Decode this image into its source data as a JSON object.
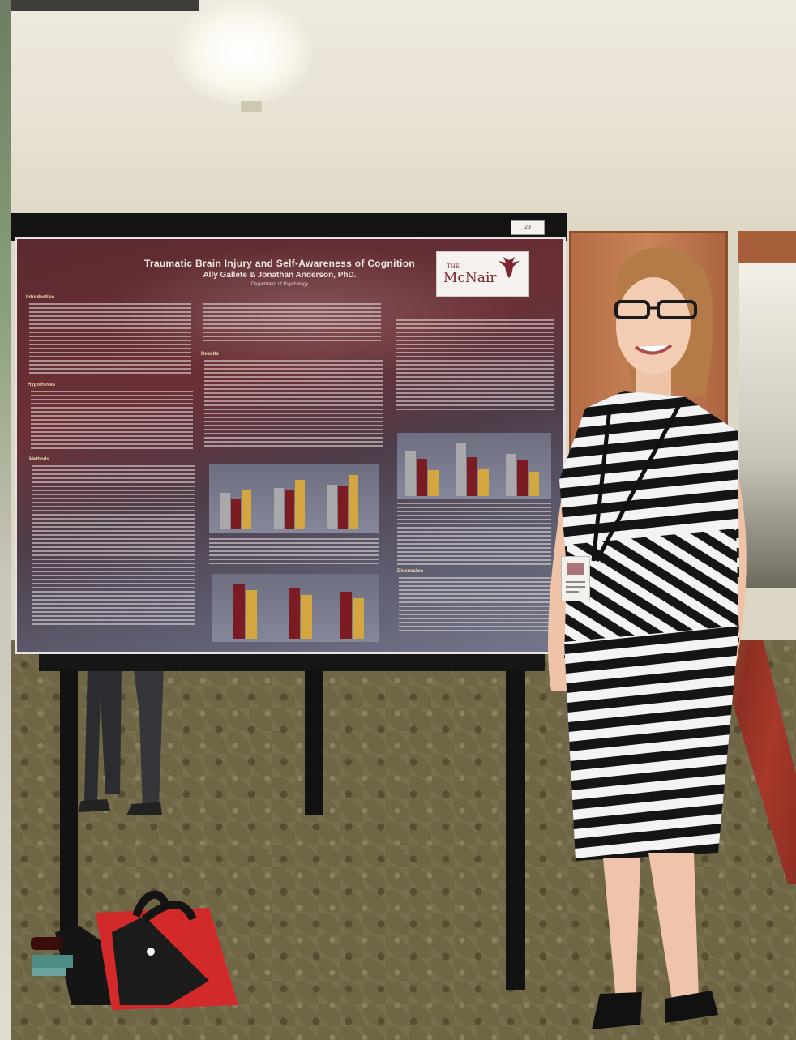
{
  "poster": {
    "title": "Traumatic Brain Injury and Self-Awareness of Cognition",
    "authors": "Ally Gallete & Jonathan Anderson, PhD.",
    "department": "Department of Psychology",
    "sections": {
      "introduction": "Introduction",
      "hypotheses": "Hypotheses",
      "methods": "Methods",
      "results": "Results",
      "discussion": "Discussion"
    }
  },
  "logo": {
    "text": "McNair",
    "prefix": "THE"
  },
  "easel": {
    "number_tag": "23"
  },
  "colors": {
    "poster_maroon": "#6b3036",
    "poster_gray": "#74778a",
    "bar_gray": "#a9a9ab",
    "bar_maroon": "#7a1c22",
    "bar_gold": "#d4a640",
    "carpet": "#6f6646",
    "dress_black": "#151515",
    "bag_red": "#d22a2a"
  },
  "chart_icons": [
    "bar-chart-icon",
    "bar-chart-icon",
    "bar-chart-icon"
  ]
}
